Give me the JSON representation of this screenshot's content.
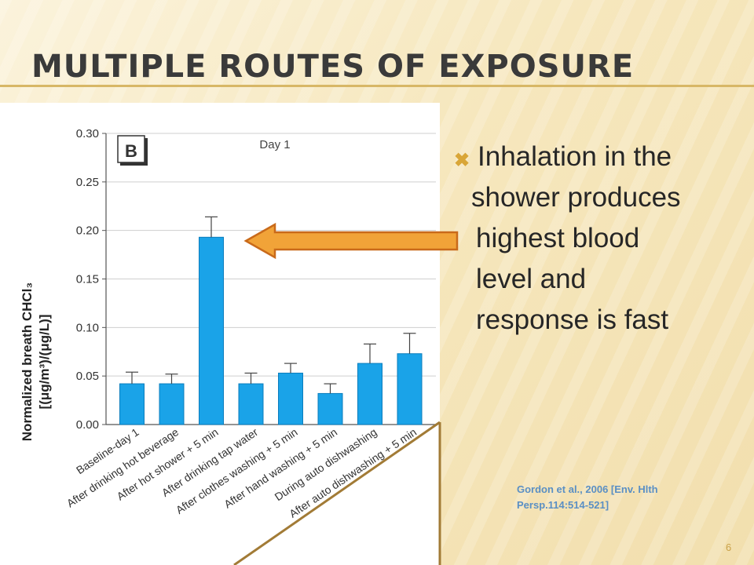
{
  "slide": {
    "title": "Multiple Routes of Exposure",
    "bullet_lines": [
      "Inhalation in the",
      "shower produces",
      "highest blood",
      "level and",
      "response is fast"
    ],
    "citation_lines": [
      "Gordon et al., 2006 [Env. Hlth",
      "Persp.114:514-521]"
    ],
    "slide_number": "6",
    "colors": {
      "accent": "#d9a638",
      "bar": "#1aa3e8",
      "arrow_fill": "#f1a338",
      "arrow_stroke": "#c96a1a",
      "citation": "#5a8fc4"
    },
    "icons": {
      "bullet": "x-mark-icon",
      "arrow": "left-arrow-icon"
    }
  },
  "chart_data": {
    "type": "bar",
    "panel_label": "B",
    "title": "Day 1",
    "ylabel_line1": "Normalized breath CHCl₃",
    "ylabel_line2": "[(μg/m³)/(μg/L)]",
    "xlabel": "",
    "ylim": [
      0,
      0.3
    ],
    "yticks": [
      "0.00",
      "0.05",
      "0.10",
      "0.15",
      "0.20",
      "0.25",
      "0.30"
    ],
    "grid": true,
    "categories": [
      "Baseline-day 1",
      "After drinking hot beverage",
      "After hot shower + 5 min",
      "After drinking tap water",
      "After clothes washing + 5 min",
      "After hand washing + 5 min",
      "During auto dishwashing",
      "After auto dishwashing + 5 min"
    ],
    "values": [
      0.042,
      0.042,
      0.193,
      0.042,
      0.053,
      0.032,
      0.063,
      0.073
    ],
    "errors": [
      0.012,
      0.01,
      0.021,
      0.011,
      0.01,
      0.01,
      0.02,
      0.021
    ]
  }
}
